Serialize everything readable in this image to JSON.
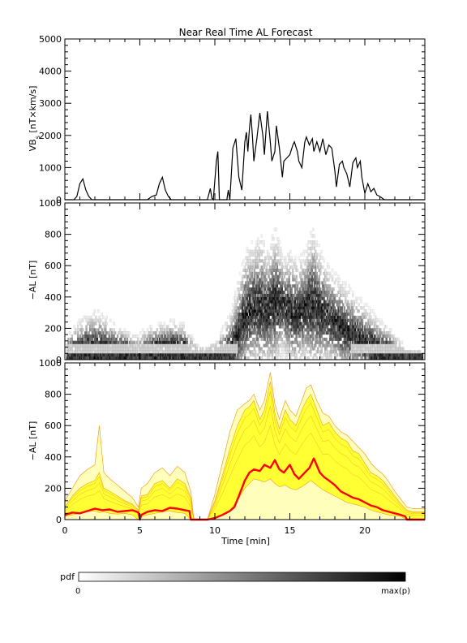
{
  "title": "Near Real Time AL Forecast",
  "colorbar": {
    "label": "pdf",
    "min_label": "0",
    "max_label": "max(p)"
  },
  "chart_data": [
    {
      "type": "line",
      "title": "Near Real Time AL Forecast",
      "ylabel": "VB_s [nT×km/s]",
      "ylabel_main": "VB",
      "ylabel_sub": "s",
      "ylabel_rest": " [nT×km/s]",
      "xlim": [
        0,
        24
      ],
      "ylim": [
        0,
        5000
      ],
      "yticks": [
        "0",
        "1000",
        "2000",
        "3000",
        "4000",
        "5000"
      ],
      "series": [
        {
          "color": "#000000",
          "x": [
            0,
            0.3,
            0.6,
            0.8,
            1.0,
            1.2,
            1.4,
            1.6,
            1.8,
            2.0,
            3.0,
            4.0,
            4.5,
            5.0,
            5.5,
            5.8,
            6.1,
            6.3,
            6.5,
            6.7,
            6.9,
            7.1,
            7.5,
            8.5,
            9.0,
            9.5,
            9.7,
            9.8,
            9.9,
            10.1,
            10.2,
            10.3,
            10.5,
            10.7,
            10.8,
            10.9,
            11.0,
            11.2,
            11.4,
            11.6,
            11.8,
            12.0,
            12.1,
            12.2,
            12.3,
            12.4,
            12.5,
            12.6,
            12.8,
            13.0,
            13.2,
            13.3,
            13.5,
            13.7,
            13.8,
            14.0,
            14.1,
            14.3,
            14.5,
            14.6,
            14.8,
            15.0,
            15.2,
            15.3,
            15.5,
            15.6,
            15.8,
            16.0,
            16.1,
            16.3,
            16.5,
            16.6,
            16.8,
            17.0,
            17.2,
            17.4,
            17.6,
            17.8,
            18.0,
            18.1,
            18.3,
            18.5,
            18.6,
            18.8,
            19.0,
            19.2,
            19.4,
            19.5,
            19.7,
            19.8,
            20.0,
            20.2,
            20.4,
            20.6,
            20.8,
            21.0,
            21.3,
            22.0,
            24.0
          ],
          "y": [
            0,
            0,
            0,
            100,
            500,
            650,
            300,
            100,
            0,
            0,
            0,
            0,
            0,
            0,
            0,
            100,
            150,
            500,
            700,
            300,
            100,
            0,
            0,
            0,
            0,
            0,
            350,
            50,
            0,
            1200,
            1500,
            0,
            0,
            0,
            0,
            300,
            0,
            1600,
            1900,
            700,
            300,
            1800,
            2100,
            1500,
            2200,
            2650,
            2000,
            1200,
            1900,
            2700,
            2000,
            1400,
            2750,
            1800,
            1200,
            1500,
            2300,
            1600,
            700,
            1200,
            1300,
            1400,
            1700,
            1800,
            1500,
            1200,
            1000,
            1800,
            1950,
            1700,
            1900,
            1500,
            1800,
            1500,
            1900,
            1400,
            1700,
            1600,
            900,
            400,
            1100,
            1200,
            1000,
            800,
            400,
            1150,
            1300,
            1000,
            1200,
            700,
            200,
            500,
            250,
            350,
            150,
            100,
            0,
            0,
            0
          ]
        }
      ]
    },
    {
      "type": "heatmap",
      "ylabel": "−AL [nT]",
      "xlim": [
        0,
        24
      ],
      "ylim": [
        0,
        1000
      ],
      "yticks": [
        "0",
        "200",
        "400",
        "600",
        "800",
        "1000"
      ],
      "median": {
        "x": [
          0,
          1,
          2,
          3,
          4,
          4.9,
          5.1,
          6,
          7,
          8,
          8.4,
          9,
          10,
          11,
          11.5,
          12,
          12.5,
          13,
          13.5,
          14,
          14.5,
          15,
          15.5,
          16,
          16.5,
          17,
          17.5,
          18,
          18.5,
          19,
          19.5,
          20,
          20.5,
          21,
          21.5,
          22,
          22.5,
          22.8,
          24
        ],
        "y": [
          40,
          70,
          65,
          55,
          60,
          0,
          30,
          70,
          80,
          70,
          0,
          0,
          20,
          50,
          150,
          280,
          320,
          330,
          300,
          360,
          340,
          300,
          280,
          320,
          350,
          300,
          260,
          230,
          180,
          150,
          130,
          110,
          90,
          70,
          60,
          40,
          30,
          0,
          0
        ]
      },
      "upper": {
        "x": [
          0,
          1,
          2,
          3,
          4,
          4.9,
          5.1,
          6,
          7,
          8,
          8.4,
          9,
          10,
          11,
          11.5,
          12,
          12.5,
          13,
          13.5,
          14,
          14.5,
          15,
          15.5,
          16,
          16.5,
          17,
          17.5,
          18,
          18.5,
          19,
          19.5,
          20,
          20.5,
          21,
          21.5,
          22,
          22.5,
          22.8,
          24
        ],
        "y": [
          150,
          250,
          320,
          250,
          180,
          150,
          180,
          220,
          250,
          220,
          150,
          60,
          100,
          300,
          500,
          700,
          750,
          800,
          700,
          850,
          650,
          700,
          650,
          700,
          850,
          700,
          600,
          550,
          500,
          450,
          400,
          350,
          300,
          250,
          200,
          150,
          100,
          60,
          50
        ]
      }
    },
    {
      "type": "area",
      "ylabel": "−AL [nT]",
      "xlabel": "Time [min]",
      "xlim": [
        0,
        24
      ],
      "ylim": [
        0,
        1000
      ],
      "xticks": [
        "0",
        "5",
        "10",
        "15",
        "20"
      ],
      "yticks": [
        "0",
        "200",
        "400",
        "600",
        "800",
        "1000"
      ],
      "colors": {
        "band_fill": "#ffff33",
        "band_light": "#ffffbb",
        "band_edge": "#f2a020",
        "median": "#ff0000"
      },
      "band": {
        "x": [
          0,
          0.5,
          1.0,
          1.5,
          2.0,
          2.3,
          2.6,
          3.0,
          3.5,
          4.0,
          4.5,
          4.9,
          5.1,
          5.5,
          6.0,
          6.5,
          7.0,
          7.5,
          8.0,
          8.4,
          8.6,
          9.5,
          10.0,
          10.5,
          11.0,
          11.5,
          12.0,
          12.3,
          12.6,
          13.0,
          13.3,
          13.7,
          14.0,
          14.3,
          14.7,
          15.0,
          15.4,
          15.8,
          16.1,
          16.4,
          16.8,
          17.2,
          17.6,
          18.0,
          18.4,
          18.8,
          19.2,
          19.6,
          20.0,
          20.4,
          20.8,
          21.2,
          21.6,
          22.0,
          22.4,
          22.8,
          23.2,
          24.0
        ],
        "lower": [
          20,
          30,
          40,
          50,
          55,
          45,
          50,
          40,
          35,
          40,
          30,
          0,
          20,
          30,
          40,
          50,
          55,
          45,
          40,
          0,
          0,
          0,
          10,
          30,
          60,
          120,
          200,
          230,
          260,
          250,
          240,
          260,
          230,
          210,
          220,
          200,
          190,
          210,
          230,
          250,
          220,
          190,
          170,
          150,
          130,
          110,
          100,
          90,
          80,
          60,
          50,
          40,
          30,
          25,
          20,
          0,
          0,
          0
        ],
        "upper": [
          80,
          150,
          200,
          230,
          250,
          300,
          200,
          180,
          150,
          120,
          100,
          60,
          150,
          160,
          230,
          250,
          200,
          260,
          230,
          140,
          0,
          0,
          120,
          280,
          450,
          600,
          700,
          720,
          760,
          640,
          700,
          880,
          680,
          580,
          700,
          640,
          600,
          700,
          760,
          800,
          700,
          600,
          620,
          560,
          520,
          500,
          440,
          420,
          360,
          300,
          280,
          250,
          200,
          150,
          100,
          60,
          50,
          50
        ]
      },
      "envelope": {
        "x": [
          0,
          0.5,
          1.0,
          1.5,
          2.0,
          2.3,
          2.6,
          3.0,
          3.5,
          4.0,
          4.5,
          4.9,
          5.1,
          5.5,
          6.0,
          6.5,
          7.0,
          7.5,
          8.0,
          8.4,
          8.6,
          9.5,
          10.0,
          10.5,
          11.0,
          11.5,
          12.0,
          12.3,
          12.6,
          13.0,
          13.3,
          13.7,
          14.0,
          14.3,
          14.7,
          15.0,
          15.4,
          15.8,
          16.1,
          16.4,
          16.8,
          17.2,
          17.6,
          18.0,
          18.4,
          18.8,
          19.2,
          19.6,
          20.0,
          20.4,
          20.8,
          21.2,
          21.6,
          22.0,
          22.4,
          22.8,
          23.2,
          24.0
        ],
        "y": [
          120,
          200,
          280,
          320,
          350,
          600,
          300,
          260,
          220,
          180,
          140,
          80,
          200,
          230,
          300,
          330,
          280,
          340,
          300,
          180,
          0,
          0,
          160,
          360,
          560,
          700,
          740,
          760,
          800,
          700,
          760,
          940,
          740,
          640,
          760,
          700,
          660,
          760,
          840,
          860,
          760,
          680,
          660,
          600,
          560,
          540,
          500,
          460,
          420,
          360,
          320,
          290,
          240,
          180,
          130,
          80,
          70,
          70
        ]
      },
      "median": {
        "x": [
          0,
          0.5,
          1.0,
          1.5,
          2.0,
          2.5,
          3.0,
          3.5,
          4.0,
          4.5,
          4.9,
          5.0,
          5.1,
          5.5,
          6.0,
          6.5,
          7.0,
          7.5,
          8.0,
          8.3,
          8.4,
          9.5,
          10.0,
          10.5,
          11.0,
          11.3,
          11.6,
          12.0,
          12.3,
          12.6,
          13.0,
          13.3,
          13.7,
          14.0,
          14.3,
          14.6,
          15.0,
          15.3,
          15.6,
          16.0,
          16.3,
          16.6,
          17.0,
          17.3,
          17.6,
          18.0,
          18.4,
          18.8,
          19.2,
          19.6,
          20.0,
          20.4,
          20.8,
          21.2,
          21.6,
          22.0,
          22.4,
          22.7,
          22.8,
          24.0
        ],
        "y": [
          30,
          45,
          40,
          55,
          70,
          60,
          65,
          50,
          55,
          60,
          45,
          0,
          30,
          50,
          60,
          55,
          75,
          70,
          60,
          55,
          0,
          0,
          10,
          30,
          55,
          80,
          150,
          250,
          300,
          320,
          310,
          350,
          330,
          380,
          320,
          300,
          350,
          290,
          260,
          300,
          330,
          390,
          300,
          270,
          250,
          220,
          180,
          160,
          140,
          130,
          110,
          90,
          80,
          60,
          50,
          40,
          30,
          20,
          0,
          0
        ]
      }
    }
  ]
}
